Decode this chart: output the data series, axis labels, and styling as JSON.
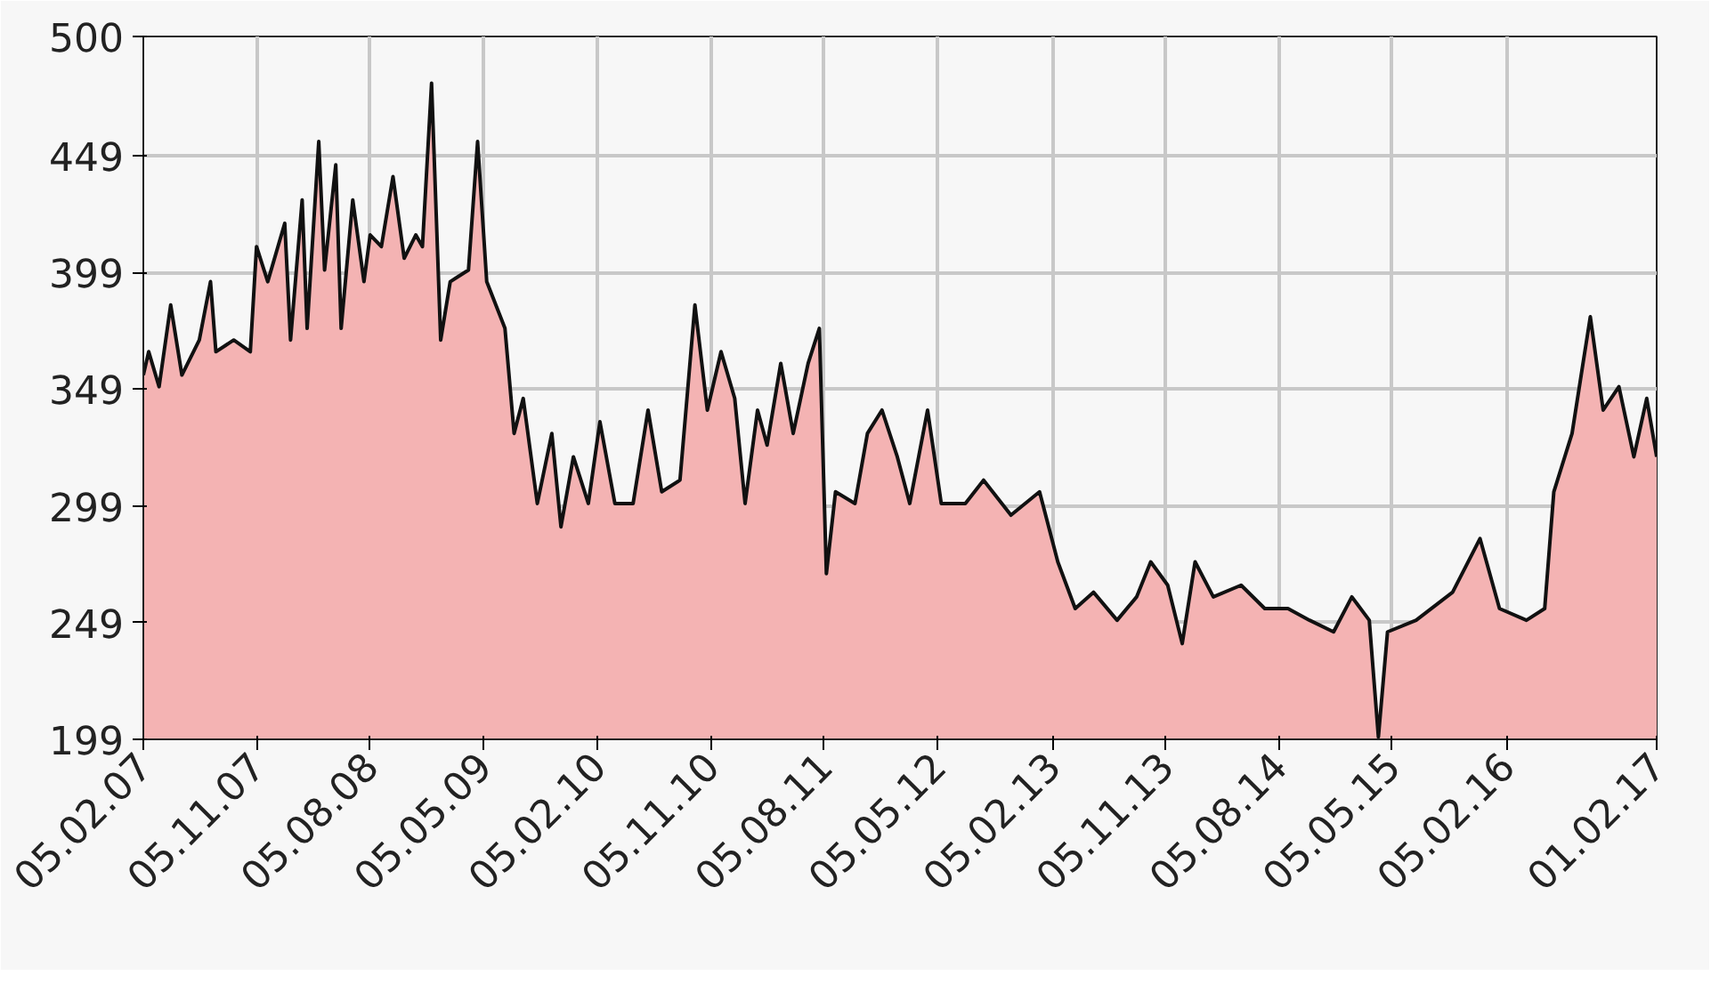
{
  "chart_data": {
    "type": "area",
    "x": [
      "2007-02-05",
      "2007-02-18",
      "2007-03-15",
      "2007-04-12",
      "2007-05-09",
      "2007-06-20",
      "2007-07-17",
      "2007-07-30",
      "2007-09-11",
      "2007-10-21",
      "2007-11-05",
      "2007-12-02",
      "2008-01-12",
      "2008-01-26",
      "2008-02-23",
      "2008-03-06",
      "2008-04-03",
      "2008-04-17",
      "2008-05-14",
      "2008-05-27",
      "2008-06-24",
      "2008-07-21",
      "2008-08-05",
      "2008-09-01",
      "2008-09-29",
      "2008-10-26",
      "2008-11-23",
      "2008-12-09",
      "2008-12-31",
      "2009-01-22",
      "2009-02-14",
      "2009-03-30",
      "2009-04-21",
      "2009-05-13",
      "2009-06-26",
      "2009-07-18",
      "2009-08-09",
      "2009-09-12",
      "2009-10-17",
      "2009-11-08",
      "2009-12-08",
      "2010-01-13",
      "2010-02-10",
      "2010-03-18",
      "2010-05-01",
      "2010-06-06",
      "2010-07-09",
      "2010-08-22",
      "2010-09-27",
      "2010-10-27",
      "2010-11-29",
      "2011-01-01",
      "2011-01-26",
      "2011-02-25",
      "2011-03-20",
      "2011-04-22",
      "2011-05-22",
      "2011-06-27",
      "2011-07-24",
      "2011-08-10",
      "2011-09-01",
      "2011-10-18",
      "2011-11-17",
      "2011-12-22",
      "2012-01-28",
      "2012-02-27",
      "2012-04-10",
      "2012-05-13",
      "2012-07-10",
      "2012-08-23",
      "2012-10-28",
      "2013-01-05",
      "2013-02-18",
      "2013-04-01",
      "2013-05-15",
      "2013-07-11",
      "2013-08-27",
      "2013-09-30",
      "2013-11-10",
      "2013-12-15",
      "2014-01-15",
      "2014-02-28",
      "2014-05-06",
      "2014-07-02",
      "2014-08-27",
      "2014-10-18",
      "2014-12-15",
      "2015-01-28",
      "2015-03-11",
      "2015-04-02",
      "2015-04-24",
      "2015-07-02",
      "2015-09-28",
      "2015-12-03",
      "2016-01-19",
      "2016-03-24",
      "2016-05-07",
      "2016-05-29",
      "2016-07-12",
      "2016-08-25",
      "2016-09-25",
      "2016-11-02",
      "2016-12-08",
      "2017-01-08",
      "2017-02-01"
    ],
    "series": [
      {
        "color": "#f4b3b3",
        "values": [
          355,
          365,
          350,
          385,
          355,
          370,
          395,
          365,
          370,
          365,
          410,
          395,
          420,
          370,
          430,
          375,
          455,
          400,
          445,
          375,
          430,
          395,
          415,
          410,
          440,
          405,
          415,
          410,
          480,
          370,
          395,
          400,
          455,
          395,
          375,
          330,
          345,
          300,
          330,
          290,
          320,
          300,
          335,
          300,
          300,
          340,
          305,
          310,
          385,
          340,
          365,
          345,
          300,
          340,
          325,
          360,
          330,
          360,
          375,
          270,
          305,
          300,
          330,
          340,
          320,
          300,
          340,
          300,
          300,
          310,
          295,
          305,
          275,
          255,
          262,
          250,
          260,
          275,
          265,
          240,
          275,
          260,
          265,
          255,
          255,
          250,
          245,
          260,
          250,
          200,
          245,
          250,
          262,
          285,
          255,
          250,
          255,
          305,
          330,
          380,
          340,
          350,
          320,
          345,
          320
        ]
      }
    ],
    "xlim": [
      "2007-02-05",
      "2017-02-01"
    ],
    "ylim": [
      199,
      500
    ],
    "xticks": [
      {
        "value": "2007-02-05",
        "label": "05.02.07"
      },
      {
        "value": "2007-11-05",
        "label": "05.11.07"
      },
      {
        "value": "2008-08-05",
        "label": "05.08.08"
      },
      {
        "value": "2009-05-05",
        "label": "05.05.09"
      },
      {
        "value": "2010-02-05",
        "label": "05.02.10"
      },
      {
        "value": "2010-11-05",
        "label": "05.11.10"
      },
      {
        "value": "2011-08-05",
        "label": "05.08.11"
      },
      {
        "value": "2012-05-05",
        "label": "05.05.12"
      },
      {
        "value": "2013-02-05",
        "label": "05.02.13"
      },
      {
        "value": "2013-11-05",
        "label": "05.11.13"
      },
      {
        "value": "2014-08-05",
        "label": "05.08.14"
      },
      {
        "value": "2015-05-05",
        "label": "05.05.15"
      },
      {
        "value": "2016-02-05",
        "label": "05.02.16"
      },
      {
        "value": "2017-02-01",
        "label": "01.02.17"
      }
    ],
    "yticks": [
      199,
      249,
      299,
      349,
      399,
      449,
      500
    ],
    "grid": true
  }
}
